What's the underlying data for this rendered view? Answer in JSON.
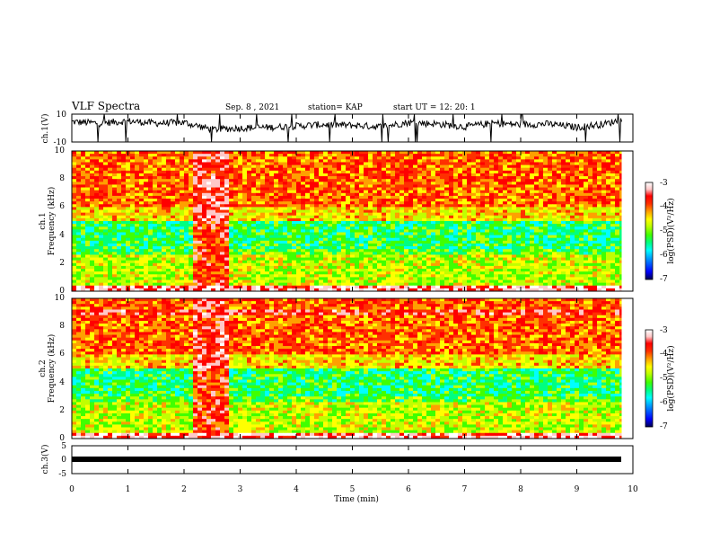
{
  "header": {
    "title": "VLF Spectra",
    "date": "Sep. 8 , 2021",
    "station": "station= KAP",
    "start": "start  UT =   12: 20: 1"
  },
  "chart_data": [
    {
      "type": "line",
      "name": "ch1-waveform",
      "ylabel": "ch.1(V)",
      "ylim": [
        -10,
        10
      ],
      "ytick_labels": [
        "10",
        "-10"
      ],
      "xlim": [
        0,
        10
      ],
      "description_values_sampled_every_0_5_min": [
        0,
        0.5,
        1,
        1.5,
        2,
        2.5,
        3,
        3.5,
        4,
        4.5,
        5,
        5.5,
        6,
        6.5,
        7,
        7.5,
        8,
        8.5,
        9,
        9.5,
        9.8
      ],
      "values": [
        4.5,
        3.5,
        5,
        3.5,
        4,
        -1,
        0,
        0.5,
        1.5,
        2.5,
        2,
        1,
        4,
        3,
        1,
        3.5,
        2.5,
        3,
        0.5,
        3,
        6
      ]
    },
    {
      "type": "heatmap",
      "name": "ch1-spectrogram",
      "ylabel": "ch.1\nFrequency (kHz)",
      "ylim": [
        0,
        10
      ],
      "ytick_labels": [
        "0",
        "2",
        "4",
        "6",
        "8",
        "10"
      ],
      "xlim": [
        0,
        10
      ],
      "colorbar": {
        "label": "log(PSD)(V²/Hz)",
        "range": [
          -7,
          -3
        ],
        "tick_labels": [
          "-3",
          "-4",
          "-5",
          "-6",
          "-7"
        ]
      }
    },
    {
      "type": "heatmap",
      "name": "ch2-spectrogram",
      "ylabel": "ch.2\nFrequency (kHz)",
      "ylim": [
        0,
        10
      ],
      "ytick_labels": [
        "0",
        "2",
        "4",
        "6",
        "8",
        "10"
      ],
      "xlim": [
        0,
        10
      ],
      "colorbar": {
        "label": "log(PSD)(V²/Hz)",
        "range": [
          -7,
          -3
        ],
        "tick_labels": [
          "-3",
          "-4",
          "-5",
          "-6",
          "-7"
        ]
      }
    },
    {
      "type": "line",
      "name": "ch3-waveform",
      "ylabel": "ch.3(V)",
      "ylim": [
        -5,
        5
      ],
      "ytick_labels": [
        "5",
        "0",
        "-5"
      ],
      "xlim": [
        0,
        9.8
      ],
      "values_description": "thick band centered at about -1 V"
    }
  ],
  "xaxis": {
    "label": "Time (min)",
    "tick_labels": [
      "0",
      "1",
      "2",
      "3",
      "4",
      "5",
      "6",
      "7",
      "8",
      "9",
      "10"
    ]
  },
  "colors": {
    "colormap": [
      "#000050",
      "#0000ff",
      "#00a0ff",
      "#00ffff",
      "#00ff80",
      "#40ff00",
      "#c0ff00",
      "#ffff00",
      "#ffa000",
      "#ff3000",
      "#ff0000",
      "#ffc8c8",
      "#ffffff"
    ]
  }
}
